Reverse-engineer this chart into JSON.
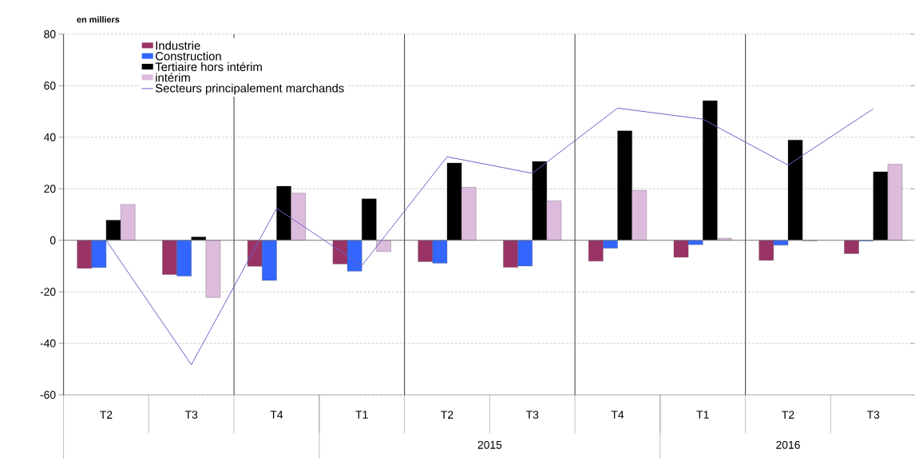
{
  "chart_data": {
    "type": "bar",
    "ylabel": "en milliers",
    "categories": [
      "T2",
      "T3",
      "T4",
      "T1",
      "T2",
      "T3",
      "T4",
      "T1",
      "T2",
      "T3"
    ],
    "series": [
      {
        "name": "Industrie",
        "color": "#993366",
        "values": [
          -10.9,
          -13.3,
          -10.1,
          -9.2,
          -8.3,
          -10.5,
          -8.1,
          -6.6,
          -7.8,
          -5.2
        ]
      },
      {
        "name": "Construction",
        "color": "#3366ff",
        "values": [
          -10.6,
          -13.9,
          -15.6,
          -12,
          -8.9,
          -10,
          -3.1,
          -1.7,
          -1.9,
          -0.3
        ]
      },
      {
        "name": "Tertiaire hors intérim",
        "color": "#000000",
        "values": [
          7.8,
          1.3,
          21,
          16.1,
          30,
          30.6,
          42.5,
          54.2,
          38.9,
          26.6
        ]
      },
      {
        "name": "intérim",
        "color": "#ddbbdd",
        "values": [
          13.9,
          -22.2,
          18.3,
          -4.4,
          20.6,
          15.3,
          19.4,
          0.8,
          -0.3,
          29.5
        ]
      },
      {
        "name": "Secteurs principalement marchands",
        "type": "line",
        "color": "#6666cc",
        "values": [
          0,
          -48.3,
          12.4,
          -9.8,
          32.4,
          26,
          51.3,
          47,
          29.2,
          51
        ]
      }
    ],
    "ylim": [
      -60,
      80
    ],
    "yticks": [
      -60,
      -40,
      -20,
      0,
      20,
      40,
      60,
      80
    ],
    "grid": true,
    "legend": "top left",
    "marker": "none",
    "annotations": [
      "2015",
      "2016"
    ]
  }
}
